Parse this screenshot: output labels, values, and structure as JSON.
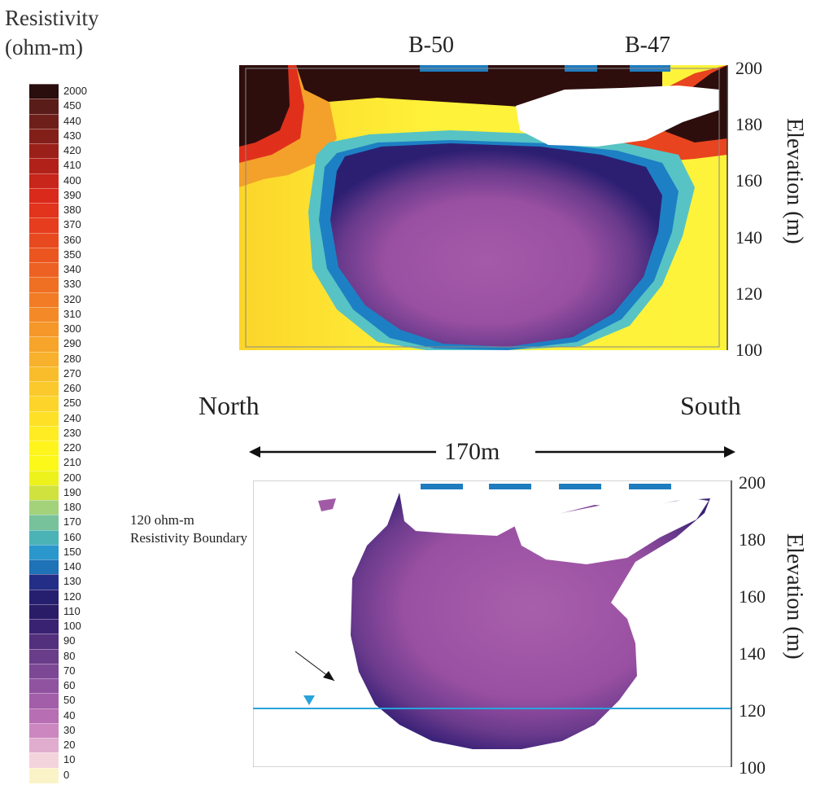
{
  "legend": {
    "title_line1": "Resistivity",
    "title_line2": "(ohm-m)",
    "labels": [
      "2000",
      "450",
      "440",
      "430",
      "420",
      "410",
      "400",
      "390",
      "380",
      "370",
      "360",
      "350",
      "340",
      "330",
      "320",
      "310",
      "300",
      "290",
      "280",
      "270",
      "260",
      "250",
      "240",
      "230",
      "220",
      "210",
      "200",
      "190",
      "180",
      "170",
      "160",
      "150",
      "140",
      "130",
      "120",
      "110",
      "100",
      "90",
      "80",
      "70",
      "60",
      "50",
      "40",
      "30",
      "20",
      "10",
      "0"
    ],
    "colors": [
      "#2a0d0d",
      "#5a1c18",
      "#6e1f1a",
      "#831f19",
      "#9b2019",
      "#b12119",
      "#c8251b",
      "#d92a1c",
      "#e2331c",
      "#e53d1e",
      "#e8491f",
      "#ea5520",
      "#ed6222",
      "#ef6f23",
      "#f17c25",
      "#f38a27",
      "#f59729",
      "#f6a52a",
      "#f8b12c",
      "#f9bd2c",
      "#fbc92c",
      "#fdd52a",
      "#fee127",
      "#ffec22",
      "#fff41c",
      "#fbf81a",
      "#eef21c",
      "#cfe23e",
      "#a3d27a",
      "#77c29a",
      "#4bb3b5",
      "#2a98cc",
      "#1e72b6",
      "#232f86",
      "#261f70",
      "#2b1c68",
      "#3a2272",
      "#52307e",
      "#6a3d8a",
      "#7c4896",
      "#8f53a0",
      "#a25ea9",
      "#b76eb3",
      "#cc87c0",
      "#e0adcf",
      "#f3d4dd",
      "#fbf3c8"
    ]
  },
  "top_section": {
    "borehole_labels": [
      "B-50",
      "B-47"
    ],
    "elevation_ticks": [
      "200",
      "180",
      "160",
      "140",
      "120",
      "100"
    ],
    "ylabel": "Elevation (m)"
  },
  "direction": {
    "north": "North",
    "south": "South",
    "distance": "170m"
  },
  "bottom_section": {
    "annotation_line1": "120 ohm-m",
    "annotation_line2": "Resistivity Boundary",
    "elevation_ticks": [
      "200",
      "180",
      "160",
      "140",
      "120",
      "100"
    ],
    "ylabel": "Elevation (m)",
    "water_table_color": "#29a3db"
  }
}
